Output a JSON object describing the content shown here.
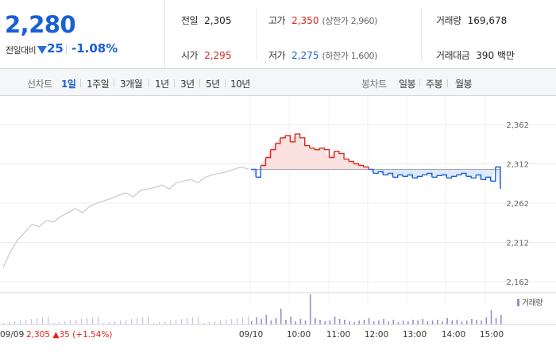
{
  "quote": {
    "price": "2,280",
    "change_label": "전일대비",
    "change_amount": "25",
    "change_rate": "-1.08%"
  },
  "summary": {
    "prev_close": {
      "label": "전일",
      "value": "2,305"
    },
    "open": {
      "label": "시가",
      "value": "2,295"
    },
    "high": {
      "label": "고가",
      "value": "2,350",
      "limit": "(상한가 2,960)"
    },
    "low": {
      "label": "저가",
      "value": "2,275",
      "limit": "(하한가 1,600)"
    },
    "volume": {
      "label": "거래량",
      "value": "169,678"
    },
    "amount": {
      "label": "거래대금",
      "value": "390 백만"
    }
  },
  "tabs": {
    "line_title": "선차트",
    "line": [
      "1일",
      "1주일",
      "3개월",
      "1년",
      "3년",
      "5년",
      "10년"
    ],
    "line_active": "1일",
    "candle_title": "봉차트",
    "candle": [
      "일봉",
      "주봉",
      "월봉"
    ]
  },
  "colors": {
    "up": "#e0241a",
    "down": "#1a5fd6",
    "prev_line": "#cccccc",
    "volume": "#9c8bc9"
  },
  "chart_data": {
    "type": "line",
    "y_ticks": [
      "2,362",
      "2,312",
      "2,262",
      "2,212",
      "2,162"
    ],
    "ylim": [
      2152,
      2372
    ],
    "base_price": 2305,
    "x_labels": [
      "09/09",
      "09/10",
      "10:00",
      "11:00",
      "12:00",
      "13:00",
      "14:00",
      "15:00"
    ],
    "prev_day_footer": {
      "close": "2,305",
      "change": "35",
      "rate": "(+1.54%)"
    },
    "volume_legend": "거래량",
    "prev_day_prices": [
      2180,
      2200,
      2215,
      2225,
      2235,
      2232,
      2240,
      2238,
      2245,
      2250,
      2255,
      2250,
      2258,
      2262,
      2265,
      2268,
      2272,
      2275,
      2270,
      2278,
      2280,
      2282,
      2285,
      2280,
      2288,
      2290,
      2292,
      2288,
      2295,
      2298,
      2300,
      2302,
      2305,
      2308,
      2305
    ],
    "today_prices": [
      2305,
      2295,
      2310,
      2320,
      2330,
      2338,
      2345,
      2348,
      2340,
      2350,
      2345,
      2335,
      2332,
      2330,
      2332,
      2330,
      2320,
      2328,
      2325,
      2318,
      2315,
      2312,
      2310,
      2308,
      2305,
      2300,
      2302,
      2298,
      2300,
      2295,
      2298,
      2296,
      2298,
      2294,
      2296,
      2298,
      2300,
      2295,
      2297,
      2298,
      2294,
      2296,
      2298,
      2300,
      2296,
      2294,
      2298,
      2292,
      2295,
      2290,
      2308,
      2280
    ],
    "today_volume": [
      4,
      9,
      7,
      12,
      5,
      8,
      20,
      6,
      10,
      4,
      7,
      5,
      38,
      8,
      6,
      4,
      5,
      10,
      7,
      6,
      4,
      3,
      5,
      6,
      8,
      4,
      5,
      7,
      4,
      6,
      3,
      5,
      4,
      6,
      5,
      7,
      4,
      5,
      6,
      4,
      8,
      5,
      6,
      4,
      5,
      7,
      6,
      5,
      9,
      18,
      8,
      12
    ]
  }
}
